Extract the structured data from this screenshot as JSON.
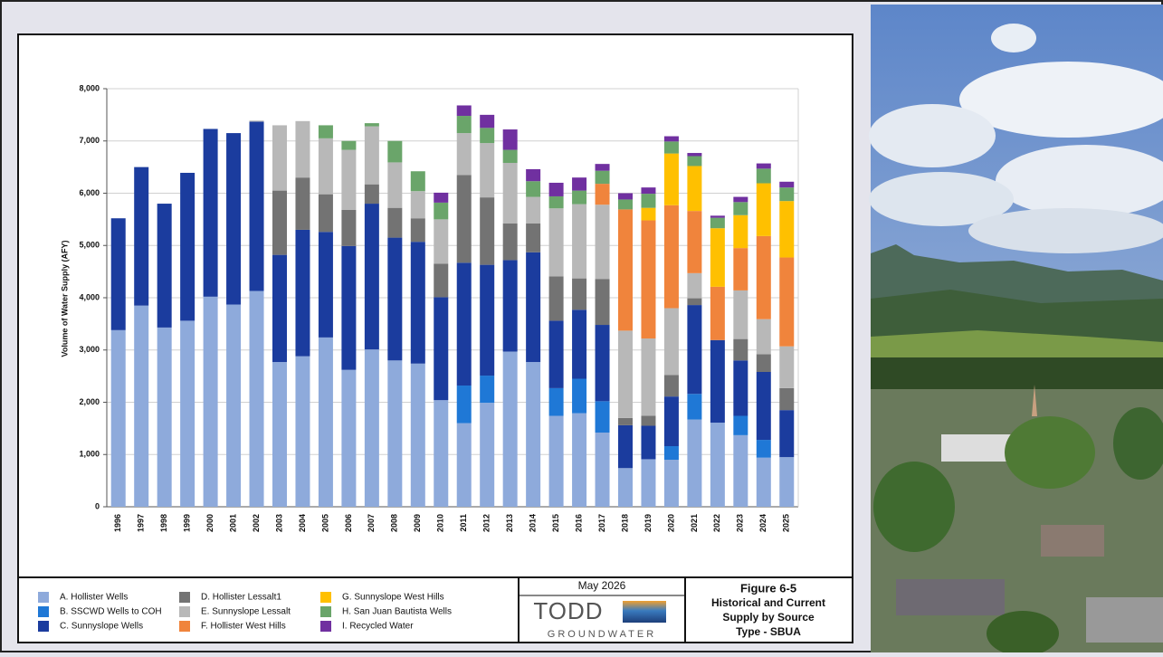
{
  "chart_data": {
    "type": "bar",
    "stacked": true,
    "y_label": "Volume of Water Supply (AFY)",
    "categories": [
      "1996",
      "1997",
      "1998",
      "1999",
      "2000",
      "2001",
      "2002",
      "2003",
      "2004",
      "2005",
      "2006",
      "2007",
      "2008",
      "2009",
      "2010",
      "2011",
      "2012",
      "2013",
      "2014",
      "2015",
      "2016",
      "2017",
      "2018",
      "2019",
      "2020",
      "2021",
      "2022",
      "2023",
      "2024",
      "2025"
    ],
    "series": [
      {
        "name": "A. Hollister Wells",
        "color": "#8eaadb",
        "values": [
          3380,
          3850,
          3430,
          3560,
          4020,
          3870,
          4130,
          2770,
          2880,
          3240,
          2620,
          3010,
          2800,
          2740,
          2040,
          1600,
          1990,
          2970,
          2770,
          1740,
          1790,
          1420,
          740,
          910,
          900,
          1670,
          1610,
          1370,
          940,
          950
        ]
      },
      {
        "name": "B. SSCWD Wells to COH",
        "color": "#1f78d6",
        "values": [
          0,
          0,
          0,
          0,
          0,
          0,
          0,
          0,
          0,
          0,
          0,
          0,
          0,
          0,
          0,
          720,
          520,
          0,
          0,
          530,
          660,
          600,
          0,
          0,
          260,
          490,
          0,
          370,
          340,
          0
        ]
      },
      {
        "name": "C. Sunnyslope Wells",
        "color": "#1b3c9e",
        "values": [
          2140,
          2650,
          2370,
          2830,
          3210,
          3280,
          3240,
          2050,
          2420,
          2020,
          2370,
          2790,
          2350,
          2330,
          1970,
          2350,
          2120,
          1750,
          2100,
          1290,
          1320,
          1460,
          820,
          640,
          950,
          1700,
          1580,
          1060,
          1300,
          900
        ]
      },
      {
        "name": "D. Hollister Lessalt1",
        "color": "#737373",
        "values": [
          0,
          0,
          0,
          0,
          0,
          0,
          0,
          1230,
          1000,
          720,
          690,
          370,
          570,
          450,
          640,
          1680,
          1290,
          700,
          550,
          850,
          600,
          880,
          140,
          190,
          410,
          130,
          0,
          410,
          340,
          420
        ]
      },
      {
        "name": "E. Sunnyslope Lessalt",
        "color": "#b8b8b8",
        "values": [
          0,
          0,
          0,
          0,
          0,
          0,
          20,
          1250,
          1080,
          1070,
          1150,
          1110,
          870,
          520,
          850,
          800,
          1040,
          1160,
          510,
          1300,
          1420,
          1420,
          1670,
          1480,
          1280,
          480,
          0,
          930,
          670,
          800
        ]
      },
      {
        "name": "F. Hollister West Hills",
        "color": "#f0843c",
        "values": [
          0,
          0,
          0,
          0,
          0,
          0,
          0,
          0,
          0,
          0,
          0,
          0,
          0,
          0,
          0,
          0,
          0,
          0,
          0,
          0,
          0,
          400,
          2320,
          2260,
          1970,
          1190,
          1020,
          810,
          1590,
          1700
        ]
      },
      {
        "name": "G. Sunnyslope West Hills",
        "color": "#ffc000",
        "values": [
          0,
          0,
          0,
          0,
          0,
          0,
          0,
          0,
          0,
          0,
          0,
          0,
          0,
          0,
          0,
          0,
          0,
          0,
          0,
          0,
          0,
          0,
          0,
          240,
          990,
          860,
          1120,
          630,
          1010,
          1080
        ]
      },
      {
        "name": "H. San Juan Bautista Wells",
        "color": "#6aa56a",
        "values": [
          0,
          0,
          0,
          0,
          0,
          0,
          0,
          0,
          0,
          250,
          170,
          60,
          410,
          380,
          320,
          330,
          290,
          250,
          300,
          230,
          260,
          250,
          190,
          270,
          230,
          190,
          200,
          250,
          280,
          260
        ]
      },
      {
        "name": "I. Recycled Water",
        "color": "#7030a0",
        "values": [
          0,
          0,
          0,
          0,
          0,
          0,
          0,
          0,
          0,
          0,
          0,
          0,
          0,
          0,
          190,
          200,
          250,
          390,
          230,
          260,
          250,
          130,
          120,
          120,
          100,
          60,
          40,
          100,
          100,
          110
        ]
      }
    ],
    "ylim": [
      0,
      8000
    ],
    "yticks": [
      0,
      {
        "value": 1000,
        "label": "1,000"
      },
      {
        "value": 2000,
        "label": "2,000"
      },
      {
        "value": 3000,
        "label": "3,000"
      },
      {
        "value": 4000,
        "label": "4,000"
      },
      {
        "value": 5000,
        "label": "5,000"
      },
      {
        "value": 6000,
        "label": "6,000"
      },
      {
        "value": 7000,
        "label": "7,000"
      },
      {
        "value": 8000,
        "label": "8,000"
      }
    ],
    "grid": true
  },
  "footer": {
    "date": "May 2026",
    "logo_top": "TODD",
    "logo_bottom": "GROUNDWATER",
    "figure_number": "Figure 6-5",
    "figure_title": [
      "Historical and Current",
      "Supply by Source",
      "Type - SBUA"
    ]
  }
}
